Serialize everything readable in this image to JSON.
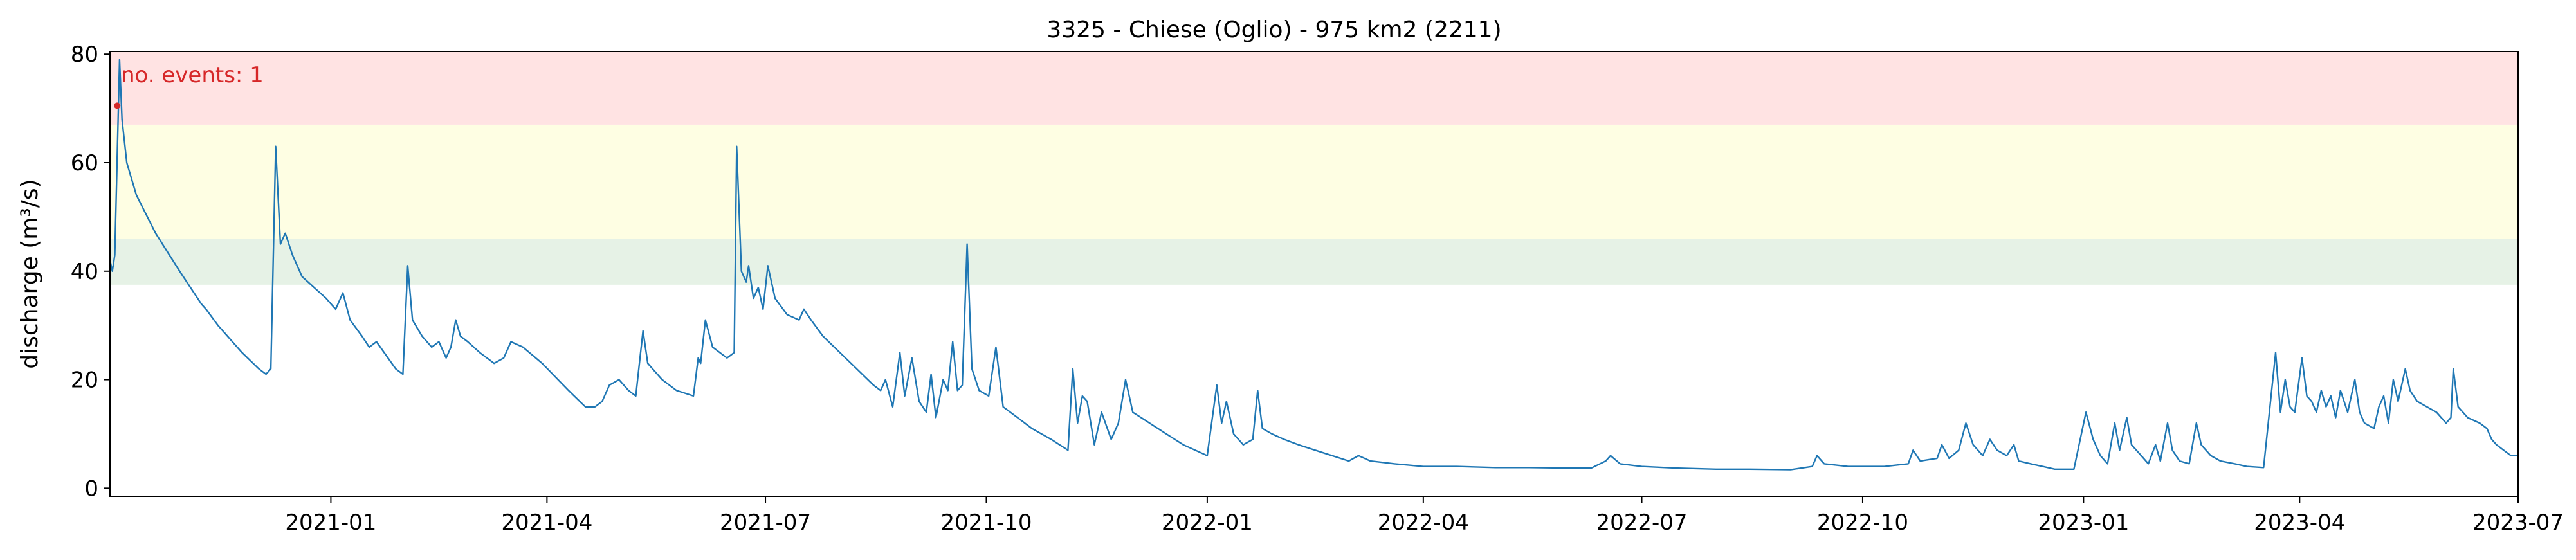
{
  "chart_data": {
    "type": "line",
    "title": "3325 - Chiese (Oglio) - 975 km2 (2211)",
    "xlabel": "",
    "ylabel": "discharge (m³/s)",
    "xlim": [
      "2020-10-01",
      "2023-07-01"
    ],
    "ylim": [
      -1.5,
      80.5
    ],
    "x_ticks": [
      "2021-01",
      "2021-04",
      "2021-07",
      "2021-10",
      "2022-01",
      "2022-04",
      "2022-07",
      "2022-10",
      "2023-01",
      "2023-04",
      "2023-07"
    ],
    "x_tick_dates": [
      "2021-01-01",
      "2021-04-01",
      "2021-07-01",
      "2021-10-01",
      "2022-01-01",
      "2022-04-01",
      "2022-07-01",
      "2022-10-01",
      "2023-01-01",
      "2023-04-01",
      "2023-07-01"
    ],
    "y_ticks": [
      0,
      20,
      40,
      60,
      80
    ],
    "grid": false,
    "threshold_bands": [
      {
        "from": 37.5,
        "to": 46,
        "color": "#e6f2e6"
      },
      {
        "from": 46,
        "to": 67,
        "color": "#fefee3"
      },
      {
        "from": 67,
        "to": 80.5,
        "color": "#ffe3e3"
      }
    ],
    "series": [
      {
        "color": "#1f77b4",
        "points": [
          [
            "2020-10-01",
            42
          ],
          [
            "2020-10-02",
            40
          ],
          [
            "2020-10-03",
            43
          ],
          [
            "2020-10-05",
            79
          ],
          [
            "2020-10-06",
            68
          ],
          [
            "2020-10-08",
            60
          ],
          [
            "2020-10-12",
            54
          ],
          [
            "2020-10-20",
            47
          ],
          [
            "2020-10-30",
            40
          ],
          [
            "2020-11-08",
            34
          ],
          [
            "2020-11-10",
            33
          ],
          [
            "2020-11-15",
            30
          ],
          [
            "2020-11-25",
            25
          ],
          [
            "2020-12-02",
            22
          ],
          [
            "2020-12-05",
            21
          ],
          [
            "2020-12-07",
            22
          ],
          [
            "2020-12-09",
            63
          ],
          [
            "2020-12-11",
            45
          ],
          [
            "2020-12-13",
            47
          ],
          [
            "2020-12-16",
            43
          ],
          [
            "2020-12-20",
            39
          ],
          [
            "2020-12-25",
            37
          ],
          [
            "2020-12-30",
            35
          ],
          [
            "2021-01-03",
            33
          ],
          [
            "2021-01-06",
            36
          ],
          [
            "2021-01-09",
            31
          ],
          [
            "2021-01-14",
            28
          ],
          [
            "2021-01-17",
            26
          ],
          [
            "2021-01-20",
            27
          ],
          [
            "2021-01-28",
            22
          ],
          [
            "2021-01-31",
            21
          ],
          [
            "2021-02-02",
            41
          ],
          [
            "2021-02-04",
            31
          ],
          [
            "2021-02-08",
            28
          ],
          [
            "2021-02-12",
            26
          ],
          [
            "2021-02-15",
            27
          ],
          [
            "2021-02-18",
            24
          ],
          [
            "2021-02-20",
            26
          ],
          [
            "2021-02-22",
            31
          ],
          [
            "2021-02-24",
            28
          ],
          [
            "2021-02-27",
            27
          ],
          [
            "2021-03-04",
            25
          ],
          [
            "2021-03-10",
            23
          ],
          [
            "2021-03-14",
            24
          ],
          [
            "2021-03-17",
            27
          ],
          [
            "2021-03-22",
            26
          ],
          [
            "2021-03-30",
            23
          ],
          [
            "2021-04-10",
            18
          ],
          [
            "2021-04-17",
            15
          ],
          [
            "2021-04-21",
            15
          ],
          [
            "2021-04-24",
            16
          ],
          [
            "2021-04-27",
            19
          ],
          [
            "2021-05-01",
            20
          ],
          [
            "2021-05-05",
            18
          ],
          [
            "2021-05-08",
            17
          ],
          [
            "2021-05-09",
            21
          ],
          [
            "2021-05-11",
            29
          ],
          [
            "2021-05-13",
            23
          ],
          [
            "2021-05-19",
            20
          ],
          [
            "2021-05-25",
            18
          ],
          [
            "2021-06-01",
            17
          ],
          [
            "2021-06-03",
            24
          ],
          [
            "2021-06-04",
            23
          ],
          [
            "2021-06-06",
            31
          ],
          [
            "2021-06-09",
            26
          ],
          [
            "2021-06-15",
            24
          ],
          [
            "2021-06-18",
            25
          ],
          [
            "2021-06-19",
            63
          ],
          [
            "2021-06-21",
            40
          ],
          [
            "2021-06-23",
            38
          ],
          [
            "2021-06-24",
            41
          ],
          [
            "2021-06-26",
            35
          ],
          [
            "2021-06-28",
            37
          ],
          [
            "2021-06-30",
            33
          ],
          [
            "2021-07-02",
            41
          ],
          [
            "2021-07-05",
            35
          ],
          [
            "2021-07-10",
            32
          ],
          [
            "2021-07-15",
            31
          ],
          [
            "2021-07-17",
            33
          ],
          [
            "2021-07-20",
            31
          ],
          [
            "2021-07-25",
            28
          ],
          [
            "2021-08-01",
            25
          ],
          [
            "2021-08-08",
            22
          ],
          [
            "2021-08-15",
            19
          ],
          [
            "2021-08-18",
            18
          ],
          [
            "2021-08-20",
            20
          ],
          [
            "2021-08-23",
            15
          ],
          [
            "2021-08-26",
            25
          ],
          [
            "2021-08-28",
            17
          ],
          [
            "2021-08-31",
            24
          ],
          [
            "2021-09-03",
            16
          ],
          [
            "2021-09-06",
            14
          ],
          [
            "2021-09-08",
            21
          ],
          [
            "2021-09-10",
            13
          ],
          [
            "2021-09-13",
            20
          ],
          [
            "2021-09-15",
            18
          ],
          [
            "2021-09-17",
            27
          ],
          [
            "2021-09-19",
            18
          ],
          [
            "2021-09-21",
            19
          ],
          [
            "2021-09-23",
            45
          ],
          [
            "2021-09-25",
            22
          ],
          [
            "2021-09-28",
            18
          ],
          [
            "2021-10-02",
            17
          ],
          [
            "2021-10-05",
            26
          ],
          [
            "2021-10-08",
            15
          ],
          [
            "2021-10-14",
            13
          ],
          [
            "2021-10-20",
            11
          ],
          [
            "2021-10-28",
            9
          ],
          [
            "2021-11-04",
            7
          ],
          [
            "2021-11-06",
            22
          ],
          [
            "2021-11-08",
            12
          ],
          [
            "2021-11-10",
            17
          ],
          [
            "2021-11-12",
            16
          ],
          [
            "2021-11-15",
            8
          ],
          [
            "2021-11-18",
            14
          ],
          [
            "2021-11-22",
            9
          ],
          [
            "2021-11-25",
            12
          ],
          [
            "2021-11-28",
            20
          ],
          [
            "2021-12-01",
            14
          ],
          [
            "2021-12-08",
            12
          ],
          [
            "2021-12-15",
            10
          ],
          [
            "2021-12-22",
            8
          ],
          [
            "2022-01-01",
            6
          ],
          [
            "2022-01-05",
            19
          ],
          [
            "2022-01-07",
            12
          ],
          [
            "2022-01-09",
            16
          ],
          [
            "2022-01-12",
            10
          ],
          [
            "2022-01-16",
            8
          ],
          [
            "2022-01-20",
            9
          ],
          [
            "2022-01-22",
            18
          ],
          [
            "2022-01-24",
            11
          ],
          [
            "2022-01-28",
            10
          ],
          [
            "2022-02-02",
            9
          ],
          [
            "2022-02-08",
            8
          ],
          [
            "2022-02-15",
            7
          ],
          [
            "2022-02-22",
            6
          ],
          [
            "2022-03-01",
            5
          ],
          [
            "2022-03-05",
            6
          ],
          [
            "2022-03-10",
            5
          ],
          [
            "2022-03-20",
            4.5
          ],
          [
            "2022-04-01",
            4
          ],
          [
            "2022-04-15",
            4
          ],
          [
            "2022-05-01",
            3.8
          ],
          [
            "2022-05-15",
            3.8
          ],
          [
            "2022-06-01",
            3.7
          ],
          [
            "2022-06-10",
            3.7
          ],
          [
            "2022-06-16",
            5
          ],
          [
            "2022-06-18",
            6
          ],
          [
            "2022-06-22",
            4.5
          ],
          [
            "2022-07-01",
            4
          ],
          [
            "2022-07-15",
            3.7
          ],
          [
            "2022-08-01",
            3.5
          ],
          [
            "2022-08-15",
            3.5
          ],
          [
            "2022-09-01",
            3.4
          ],
          [
            "2022-09-10",
            4
          ],
          [
            "2022-09-12",
            6
          ],
          [
            "2022-09-15",
            4.5
          ],
          [
            "2022-09-25",
            4
          ],
          [
            "2022-10-10",
            4
          ],
          [
            "2022-10-20",
            4.5
          ],
          [
            "2022-10-22",
            7
          ],
          [
            "2022-10-25",
            5
          ],
          [
            "2022-11-01",
            5.5
          ],
          [
            "2022-11-03",
            8
          ],
          [
            "2022-11-06",
            5.5
          ],
          [
            "2022-11-10",
            7
          ],
          [
            "2022-11-13",
            12
          ],
          [
            "2022-11-16",
            8
          ],
          [
            "2022-11-20",
            6
          ],
          [
            "2022-11-23",
            9
          ],
          [
            "2022-11-26",
            7
          ],
          [
            "2022-11-30",
            6
          ],
          [
            "2022-12-03",
            8
          ],
          [
            "2022-12-05",
            5
          ],
          [
            "2022-12-10",
            4.5
          ],
          [
            "2022-12-15",
            4
          ],
          [
            "2022-12-20",
            3.5
          ],
          [
            "2022-12-28",
            3.5
          ],
          [
            "2023-01-02",
            14
          ],
          [
            "2023-01-05",
            9
          ],
          [
            "2023-01-08",
            6
          ],
          [
            "2023-01-11",
            4.5
          ],
          [
            "2023-01-14",
            12
          ],
          [
            "2023-01-16",
            7
          ],
          [
            "2023-01-19",
            13
          ],
          [
            "2023-01-21",
            8
          ],
          [
            "2023-01-25",
            6
          ],
          [
            "2023-01-28",
            4.5
          ],
          [
            "2023-01-31",
            8
          ],
          [
            "2023-02-02",
            5
          ],
          [
            "2023-02-05",
            12
          ],
          [
            "2023-02-07",
            7
          ],
          [
            "2023-02-10",
            5
          ],
          [
            "2023-02-14",
            4.5
          ],
          [
            "2023-02-17",
            12
          ],
          [
            "2023-02-19",
            8
          ],
          [
            "2023-02-23",
            6
          ],
          [
            "2023-02-27",
            5
          ],
          [
            "2023-03-05",
            4.5
          ],
          [
            "2023-03-10",
            4
          ],
          [
            "2023-03-17",
            3.8
          ],
          [
            "2023-03-22",
            25
          ],
          [
            "2023-03-24",
            14
          ],
          [
            "2023-03-26",
            20
          ],
          [
            "2023-03-28",
            15
          ],
          [
            "2023-03-30",
            14
          ],
          [
            "2023-04-02",
            24
          ],
          [
            "2023-04-04",
            17
          ],
          [
            "2023-04-06",
            16
          ],
          [
            "2023-04-08",
            14
          ],
          [
            "2023-04-10",
            18
          ],
          [
            "2023-04-12",
            15
          ],
          [
            "2023-04-14",
            17
          ],
          [
            "2023-04-16",
            13
          ],
          [
            "2023-04-18",
            18
          ],
          [
            "2023-04-21",
            14
          ],
          [
            "2023-04-24",
            20
          ],
          [
            "2023-04-26",
            14
          ],
          [
            "2023-04-28",
            12
          ],
          [
            "2023-05-02",
            11
          ],
          [
            "2023-05-04",
            15
          ],
          [
            "2023-05-06",
            17
          ],
          [
            "2023-05-08",
            12
          ],
          [
            "2023-05-10",
            20
          ],
          [
            "2023-05-12",
            16
          ],
          [
            "2023-05-15",
            22
          ],
          [
            "2023-05-17",
            18
          ],
          [
            "2023-05-20",
            16
          ],
          [
            "2023-05-24",
            15
          ],
          [
            "2023-05-28",
            14
          ],
          [
            "2023-06-01",
            12
          ],
          [
            "2023-06-03",
            13
          ],
          [
            "2023-06-04",
            22
          ],
          [
            "2023-06-06",
            15
          ],
          [
            "2023-06-10",
            13
          ],
          [
            "2023-06-15",
            12
          ],
          [
            "2023-06-18",
            11
          ],
          [
            "2023-06-20",
            9
          ],
          [
            "2023-06-22",
            8
          ],
          [
            "2023-06-25",
            7
          ],
          [
            "2023-06-28",
            6
          ],
          [
            "2023-07-01",
            6
          ]
        ]
      }
    ],
    "event_marker": {
      "date": "2020-10-04",
      "value": 70.5,
      "color": "#d62728"
    },
    "annotation": {
      "text": "no. events: 1",
      "color": "#d62728",
      "position": "top-left"
    }
  }
}
